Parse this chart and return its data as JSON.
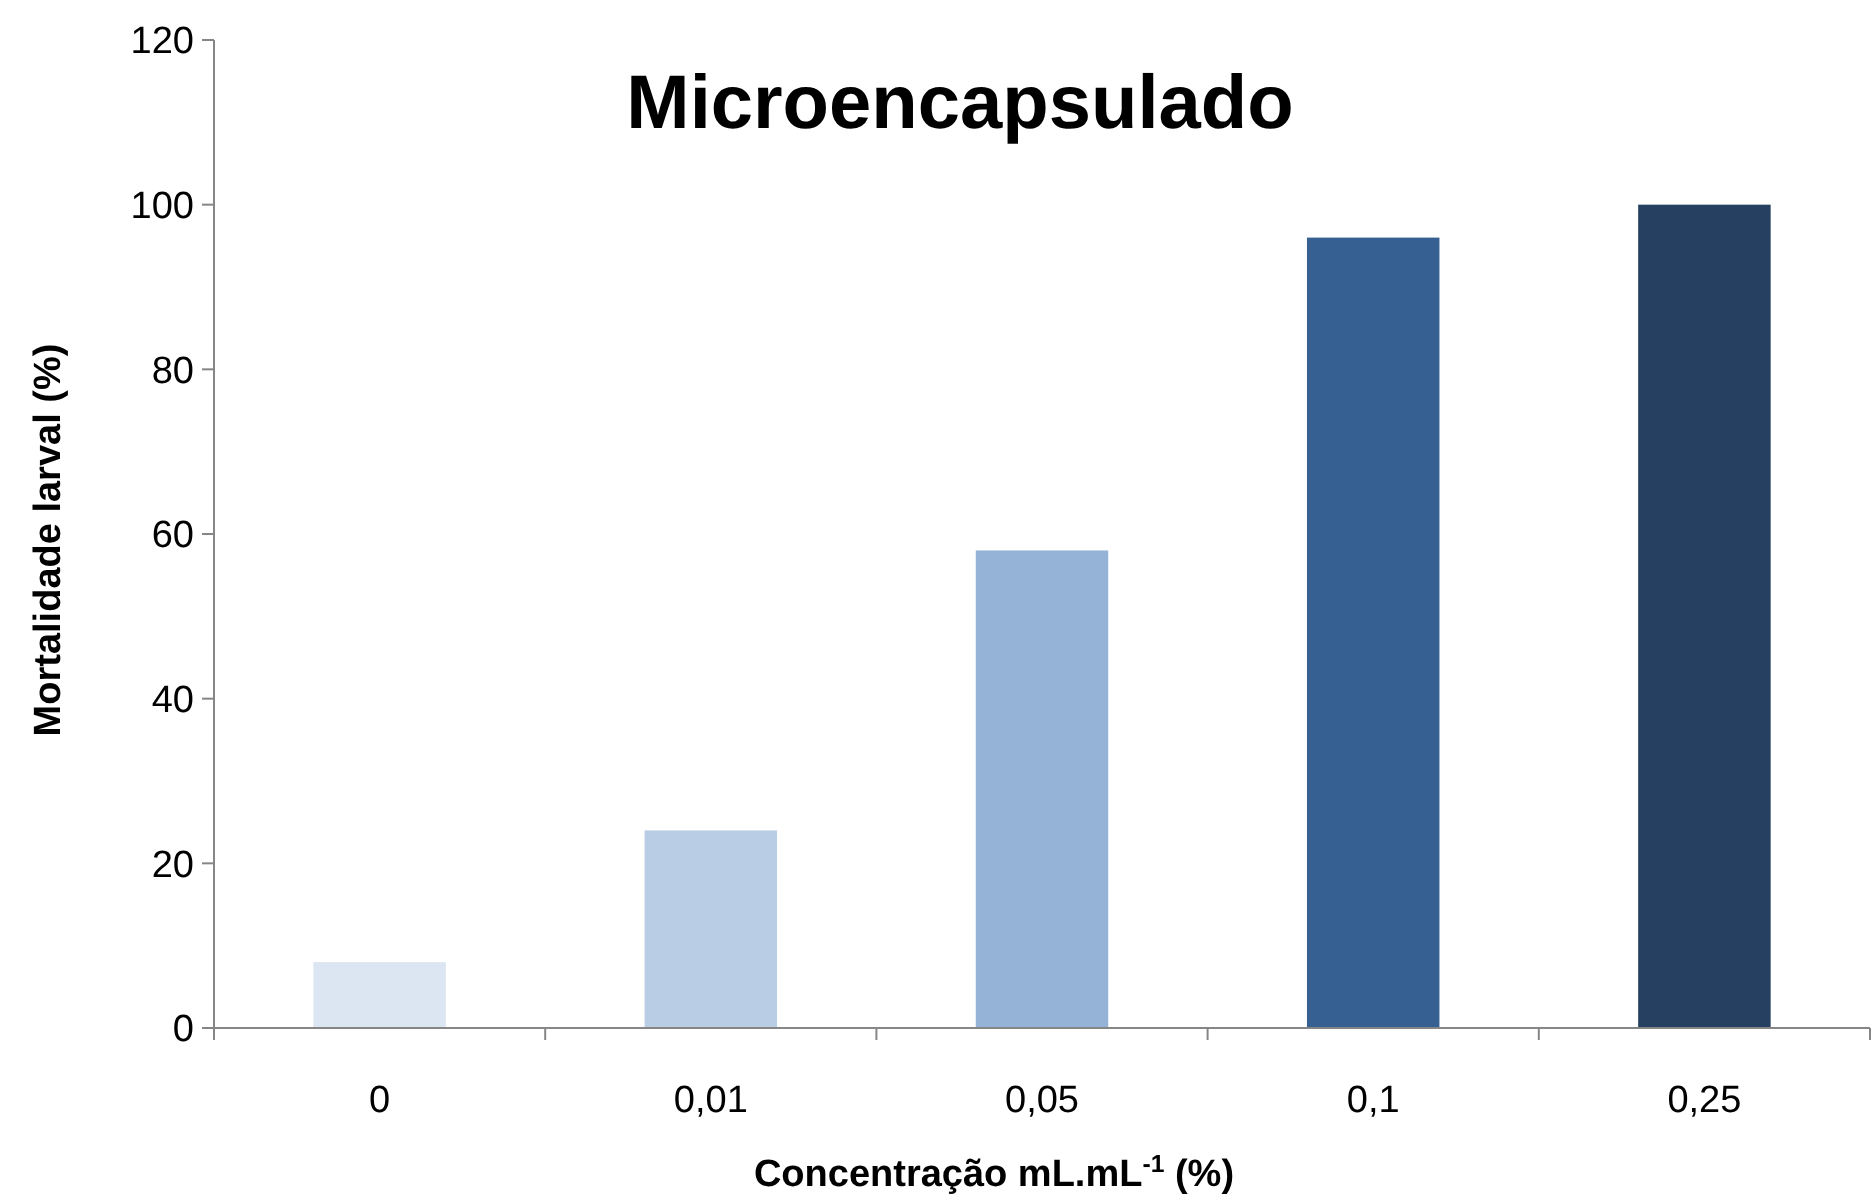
{
  "chart_data": {
    "type": "bar",
    "title": "Microencapsulado",
    "xlabel": "Concentração mL.mL$^{-1}$ (%)",
    "ylabel": "Mortalidade larval (%)",
    "categories": [
      "0",
      "0,01",
      "0,05",
      "0,1",
      "0,25"
    ],
    "values": [
      8,
      24,
      58,
      96,
      100
    ],
    "colors": [
      "#dce6f2",
      "#b9cde5",
      "#95b3d7",
      "#376092",
      "#254061"
    ],
    "ylim": [
      0,
      120
    ],
    "yticks": [
      0,
      20,
      40,
      60,
      80,
      100,
      120
    ],
    "grid": false
  }
}
